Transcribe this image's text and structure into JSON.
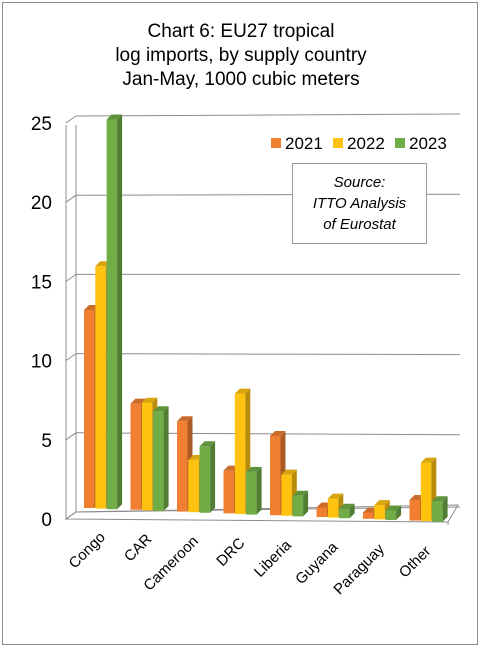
{
  "chart_data": {
    "type": "bar",
    "title_lines": [
      "Chart 6: EU27 tropical",
      "log imports, by supply country",
      "Jan-May, 1000 cubic meters"
    ],
    "categories": [
      "Congo",
      "CAR",
      "Cameroon",
      "DRC",
      "Liberia",
      "Guyana",
      "Paraguay",
      "Other"
    ],
    "series": [
      {
        "name": "2021",
        "color": "#f07f32",
        "values": [
          12.5,
          6.7,
          5.7,
          2.7,
          5.0,
          0.6,
          0.4,
          1.3
        ]
      },
      {
        "name": "2022",
        "color": "#ffc20e",
        "values": [
          15.3,
          6.8,
          3.3,
          7.6,
          2.6,
          1.2,
          0.9,
          3.7
        ]
      },
      {
        "name": "2023",
        "color": "#70ad47",
        "values": [
          24.6,
          6.3,
          4.2,
          2.7,
          1.3,
          0.6,
          0.6,
          1.3
        ]
      }
    ],
    "yticks": [
      "0",
      "5",
      "10",
      "15",
      "20",
      "25"
    ],
    "ylim": [
      0,
      25
    ],
    "grid": true,
    "legend_position": "top-right",
    "annotation_lines": [
      "Source:",
      "ITTO  Analysis",
      "of Eurostat"
    ]
  }
}
